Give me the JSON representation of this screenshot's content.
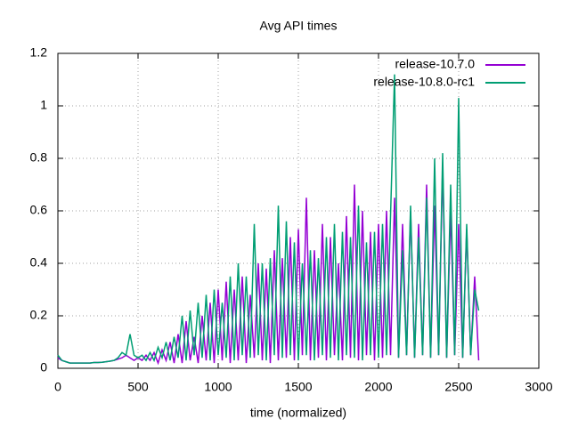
{
  "chart_data": {
    "type": "line",
    "title": "Avg API times",
    "x_label": "time (normalized)",
    "x": [
      0,
      25,
      50,
      75,
      100,
      125,
      150,
      175,
      200,
      225,
      250,
      275,
      300,
      325,
      350,
      375,
      400,
      425,
      450,
      475,
      500,
      525,
      550,
      575,
      600,
      625,
      650,
      675,
      700,
      725,
      750,
      775,
      800,
      825,
      850,
      875,
      900,
      925,
      950,
      975,
      1000,
      1025,
      1050,
      1075,
      1100,
      1125,
      1150,
      1175,
      1200,
      1225,
      1250,
      1275,
      1300,
      1325,
      1350,
      1375,
      1400,
      1425,
      1450,
      1475,
      1500,
      1525,
      1550,
      1575,
      1600,
      1625,
      1650,
      1675,
      1700,
      1725,
      1750,
      1775,
      1800,
      1825,
      1850,
      1875,
      1900,
      1925,
      1950,
      1975,
      2000,
      2025,
      2050,
      2075,
      2100,
      2125,
      2150,
      2175,
      2200,
      2225,
      2250,
      2275,
      2300,
      2325,
      2350,
      2375,
      2400,
      2425,
      2450,
      2475,
      2500,
      2525,
      2550,
      2575,
      2600,
      2625
    ],
    "series": [
      {
        "name": "release-10.7.0",
        "color": "#9400d3",
        "values": [
          0.04,
          0.03,
          0.025,
          0.02,
          0.02,
          0.02,
          0.02,
          0.02,
          0.02,
          0.022,
          0.022,
          0.023,
          0.025,
          0.027,
          0.03,
          0.035,
          0.04,
          0.05,
          0.04,
          0.03,
          0.04,
          0.03,
          0.05,
          0.03,
          0.06,
          0.02,
          0.07,
          0.03,
          0.1,
          0.02,
          0.13,
          0.02,
          0.18,
          0.03,
          0.12,
          0.02,
          0.2,
          0.03,
          0.25,
          0.02,
          0.3,
          0.03,
          0.33,
          0.02,
          0.3,
          0.03,
          0.35,
          0.02,
          0.28,
          0.04,
          0.4,
          0.03,
          0.38,
          0.02,
          0.45,
          0.03,
          0.42,
          0.04,
          0.5,
          0.03,
          0.53,
          0.05,
          0.65,
          0.03,
          0.45,
          0.04,
          0.55,
          0.03,
          0.5,
          0.05,
          0.4,
          0.03,
          0.58,
          0.04,
          0.7,
          0.03,
          0.6,
          0.05,
          0.52,
          0.03,
          0.55,
          0.04,
          0.6,
          0.05,
          0.65,
          0.04,
          0.55,
          0.05,
          0.6,
          0.04,
          0.55,
          0.05,
          0.7,
          0.04,
          0.62,
          0.05,
          0.77,
          0.04,
          0.6,
          0.05,
          0.55,
          0.04,
          0.53,
          0.05,
          0.35,
          0.03
        ]
      },
      {
        "name": "release-10.8.0-rc1",
        "color": "#009e73",
        "values": [
          0.05,
          0.03,
          0.025,
          0.02,
          0.02,
          0.02,
          0.02,
          0.02,
          0.02,
          0.022,
          0.022,
          0.023,
          0.025,
          0.027,
          0.03,
          0.04,
          0.06,
          0.05,
          0.13,
          0.05,
          0.04,
          0.05,
          0.03,
          0.06,
          0.03,
          0.08,
          0.04,
          0.1,
          0.03,
          0.12,
          0.04,
          0.2,
          0.03,
          0.22,
          0.05,
          0.25,
          0.04,
          0.28,
          0.03,
          0.3,
          0.05,
          0.25,
          0.04,
          0.35,
          0.03,
          0.4,
          0.05,
          0.35,
          0.04,
          0.55,
          0.05,
          0.4,
          0.03,
          0.42,
          0.05,
          0.62,
          0.04,
          0.56,
          0.05,
          0.48,
          0.03,
          0.4,
          0.05,
          0.45,
          0.03,
          0.42,
          0.05,
          0.5,
          0.04,
          0.55,
          0.03,
          0.52,
          0.05,
          0.5,
          0.04,
          0.62,
          0.03,
          0.48,
          0.05,
          0.52,
          0.04,
          0.55,
          0.05,
          0.58,
          1.12,
          0.04,
          0.45,
          0.05,
          0.62,
          0.04,
          0.5,
          0.05,
          0.65,
          0.04,
          0.8,
          0.05,
          0.82,
          0.04,
          0.7,
          0.05,
          1.03,
          0.04,
          0.55,
          0.05,
          0.3,
          0.22
        ]
      }
    ],
    "xlim": [
      0,
      3000
    ],
    "xticks": [
      0,
      500,
      1000,
      1500,
      2000,
      2500,
      3000
    ],
    "ylim": [
      0,
      1.2
    ],
    "yticks": [
      0,
      0.2,
      0.4,
      0.6,
      0.8,
      1,
      1.2
    ],
    "grid": true,
    "legend": "top right"
  }
}
